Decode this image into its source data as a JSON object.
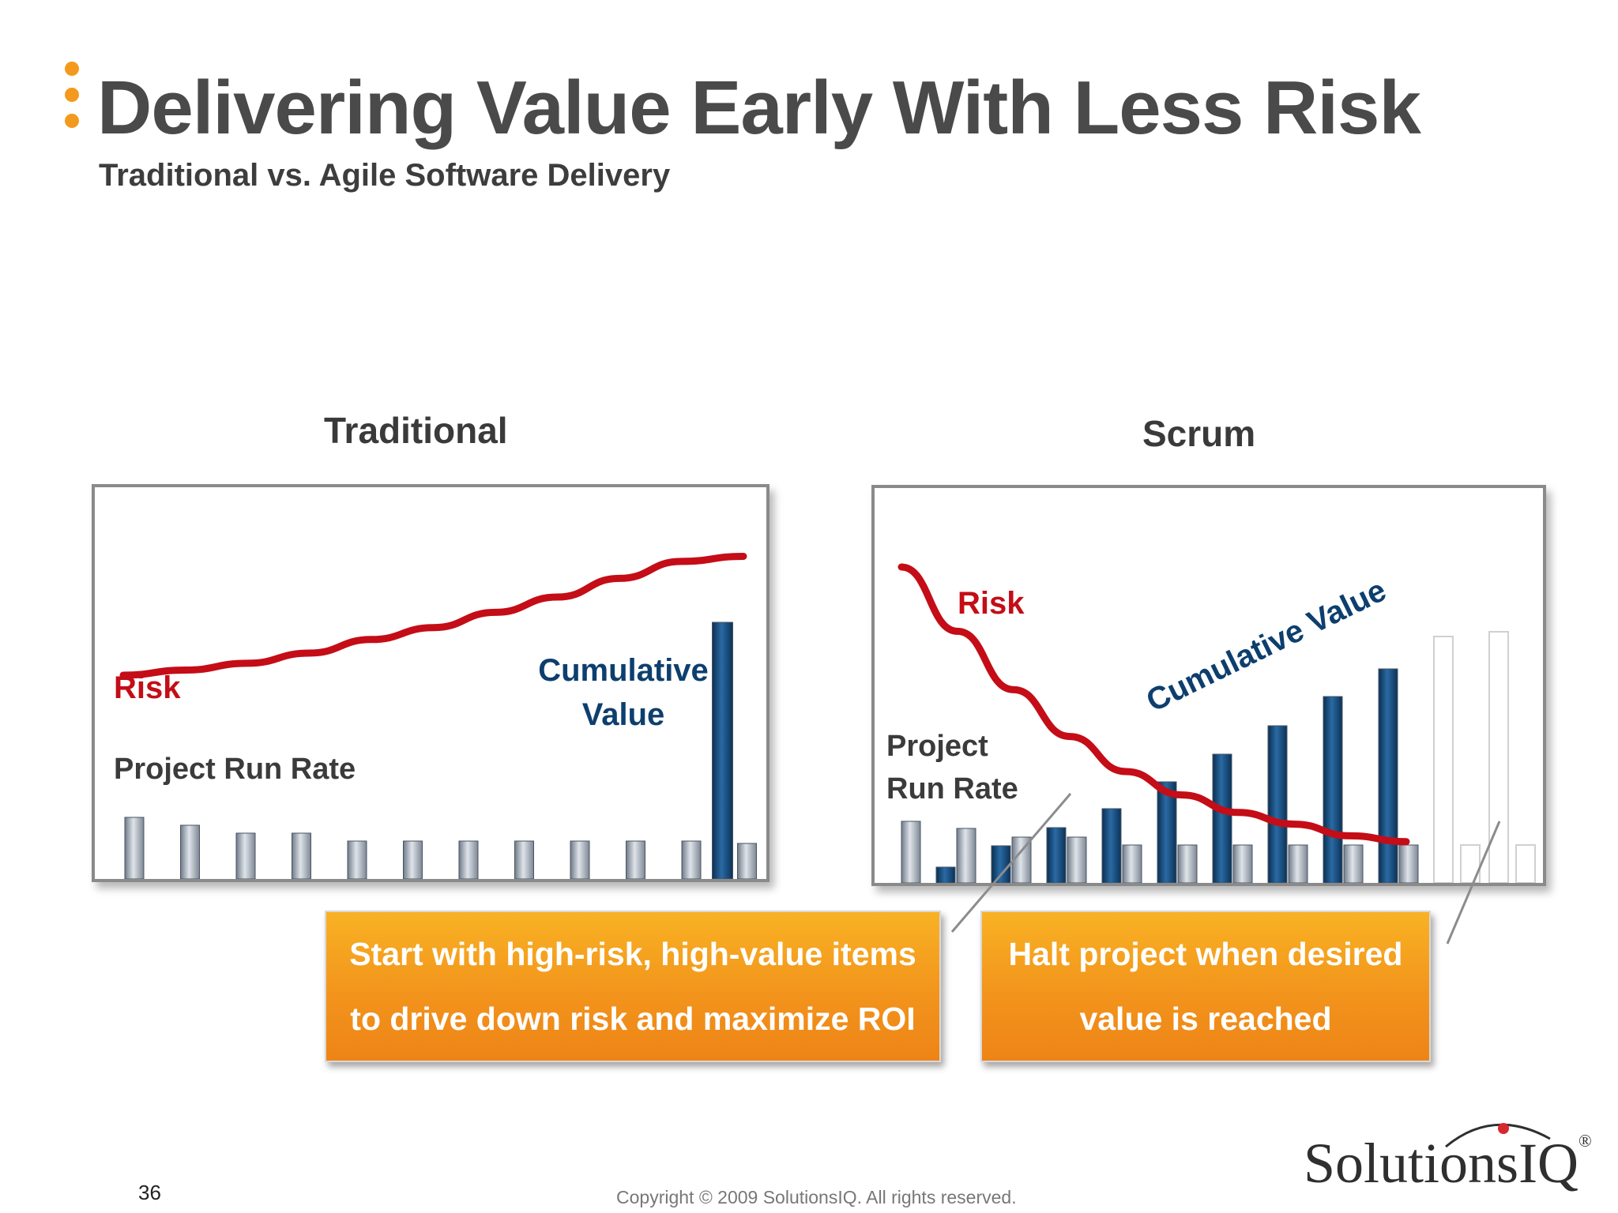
{
  "slide": {
    "title": "Delivering Value Early With Less Risk",
    "subtitle": "Traditional vs. Agile Software Delivery",
    "page_number": "36",
    "copyright": "Copyright © 2009 SolutionsIQ. All rights reserved."
  },
  "logo": {
    "text": "SolutionsIQ",
    "registered_mark": "®"
  },
  "colors": {
    "accent_orange": "#f39a1e",
    "risk_red": "#c40d17",
    "value_blue": "#0d3f6e",
    "run_rate_gray": "#9aa4b1"
  },
  "traditional": {
    "heading": "Traditional",
    "risk_label": "Risk",
    "value_label_line1": "Cumulative",
    "value_label_line2": "Value",
    "run_rate_label": "Project Run Rate",
    "run_rate_levels": [
      0.78,
      0.68,
      0.58,
      0.58,
      0.48,
      0.48,
      0.48,
      0.48,
      0.48,
      0.48,
      0.48,
      0.45
    ],
    "value_levels": [
      0,
      0,
      0,
      0,
      0,
      0,
      0,
      0,
      0,
      0,
      0,
      1.0
    ],
    "risk_curve": [
      0.27,
      0.3,
      0.34,
      0.4,
      0.48,
      0.55,
      0.64,
      0.73,
      0.84,
      0.94,
      0.97
    ]
  },
  "scrum": {
    "heading": "Scrum",
    "risk_label": "Risk",
    "value_label": "Cumulative Value",
    "run_rate_label_line1": "Project",
    "run_rate_label_line2": "Run Rate",
    "run_rate_levels": [
      0.78,
      0.69,
      0.58,
      0.58,
      0.48,
      0.48,
      0.48,
      0.48,
      0.48,
      0.48
    ],
    "value_levels": [
      0.2,
      0.47,
      0.7,
      0.94,
      1.28,
      1.63,
      1.99,
      2.36,
      2.71
    ],
    "halted_value_levels": [
      3.12,
      3.18
    ],
    "risk_curve": [
      1.0,
      0.78,
      0.58,
      0.42,
      0.3,
      0.22,
      0.16,
      0.12,
      0.08,
      0.06
    ]
  },
  "callouts": {
    "left_line1": "Start with high-risk, high-value items",
    "left_line2": "to drive down risk and maximize ROI",
    "right_line1": "Halt project when desired",
    "right_line2": "value is reached"
  }
}
